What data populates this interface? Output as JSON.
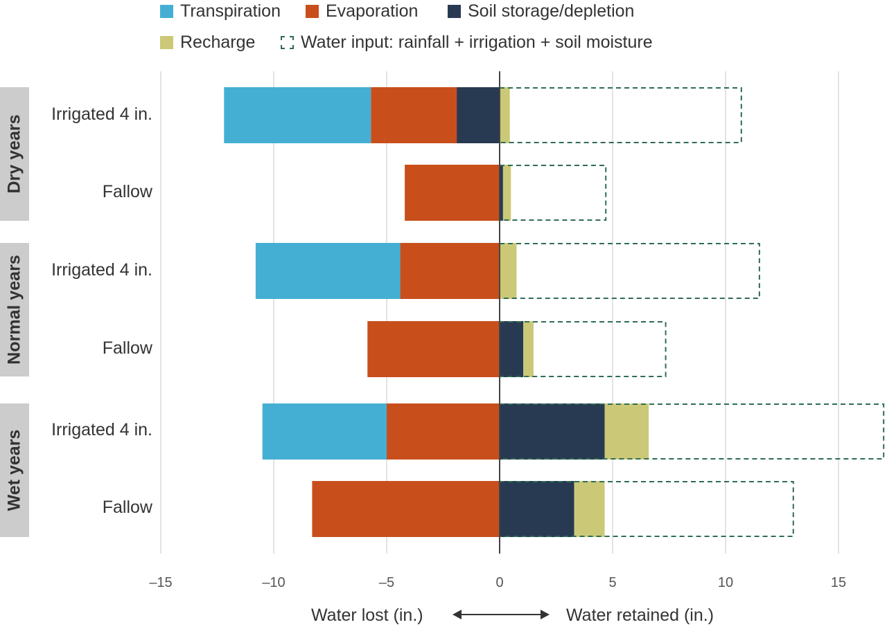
{
  "chart_data": {
    "type": "bar",
    "orientation": "horizontal-diverging",
    "legend": [
      {
        "key": "transpiration",
        "label": "Transpiration",
        "color": "#44afd3"
      },
      {
        "key": "evaporation",
        "label": "Evaporation",
        "color": "#c84f1c"
      },
      {
        "key": "soil",
        "label": "Soil storage/depletion",
        "color": "#283a52"
      },
      {
        "key": "recharge",
        "label": "Recharge",
        "color": "#cbc978"
      },
      {
        "key": "input",
        "label": "Water input: rainfall + irrigation + soil moisture",
        "color": "#2e6b55",
        "style": "dashed"
      }
    ],
    "groups": [
      {
        "label": "Dry years",
        "rows": [
          {
            "label": "Irrigated 4 in.",
            "transpiration": -6.5,
            "evaporation": -3.8,
            "soil": -1.9,
            "recharge": 0.45,
            "input": 10.7
          },
          {
            "label": "Fallow",
            "transpiration": 0,
            "evaporation": -4.2,
            "soil": 0.15,
            "recharge": 0.35,
            "input": 4.7
          }
        ]
      },
      {
        "label": "Normal years",
        "rows": [
          {
            "label": "Irrigated 4 in.",
            "transpiration": -6.4,
            "evaporation": -4.4,
            "soil": 0,
            "recharge": 0.75,
            "input": 11.5
          },
          {
            "label": "Fallow",
            "transpiration": 0,
            "evaporation": -5.85,
            "soil": 1.05,
            "recharge": 0.45,
            "input": 7.35
          }
        ]
      },
      {
        "label": "Wet years",
        "rows": [
          {
            "label": "Irrigated 4 in.",
            "transpiration": -5.5,
            "evaporation": -5.0,
            "soil": 4.65,
            "recharge": 1.95,
            "input": 17.0
          },
          {
            "label": "Fallow",
            "transpiration": 0,
            "evaporation": -8.3,
            "soil": 3.3,
            "recharge": 1.35,
            "input": 13.0
          }
        ]
      }
    ],
    "xlim": [
      -15,
      17.5
    ],
    "xticks": [
      -15,
      -10,
      -5,
      0,
      5,
      10,
      15
    ],
    "xtick_labels": [
      "–15",
      "–10",
      "–5",
      "0",
      "5",
      "10",
      "15"
    ],
    "xlabel_left": "Water lost (in.)",
    "xlabel_right": "Water retained (in.)",
    "grid": true
  }
}
